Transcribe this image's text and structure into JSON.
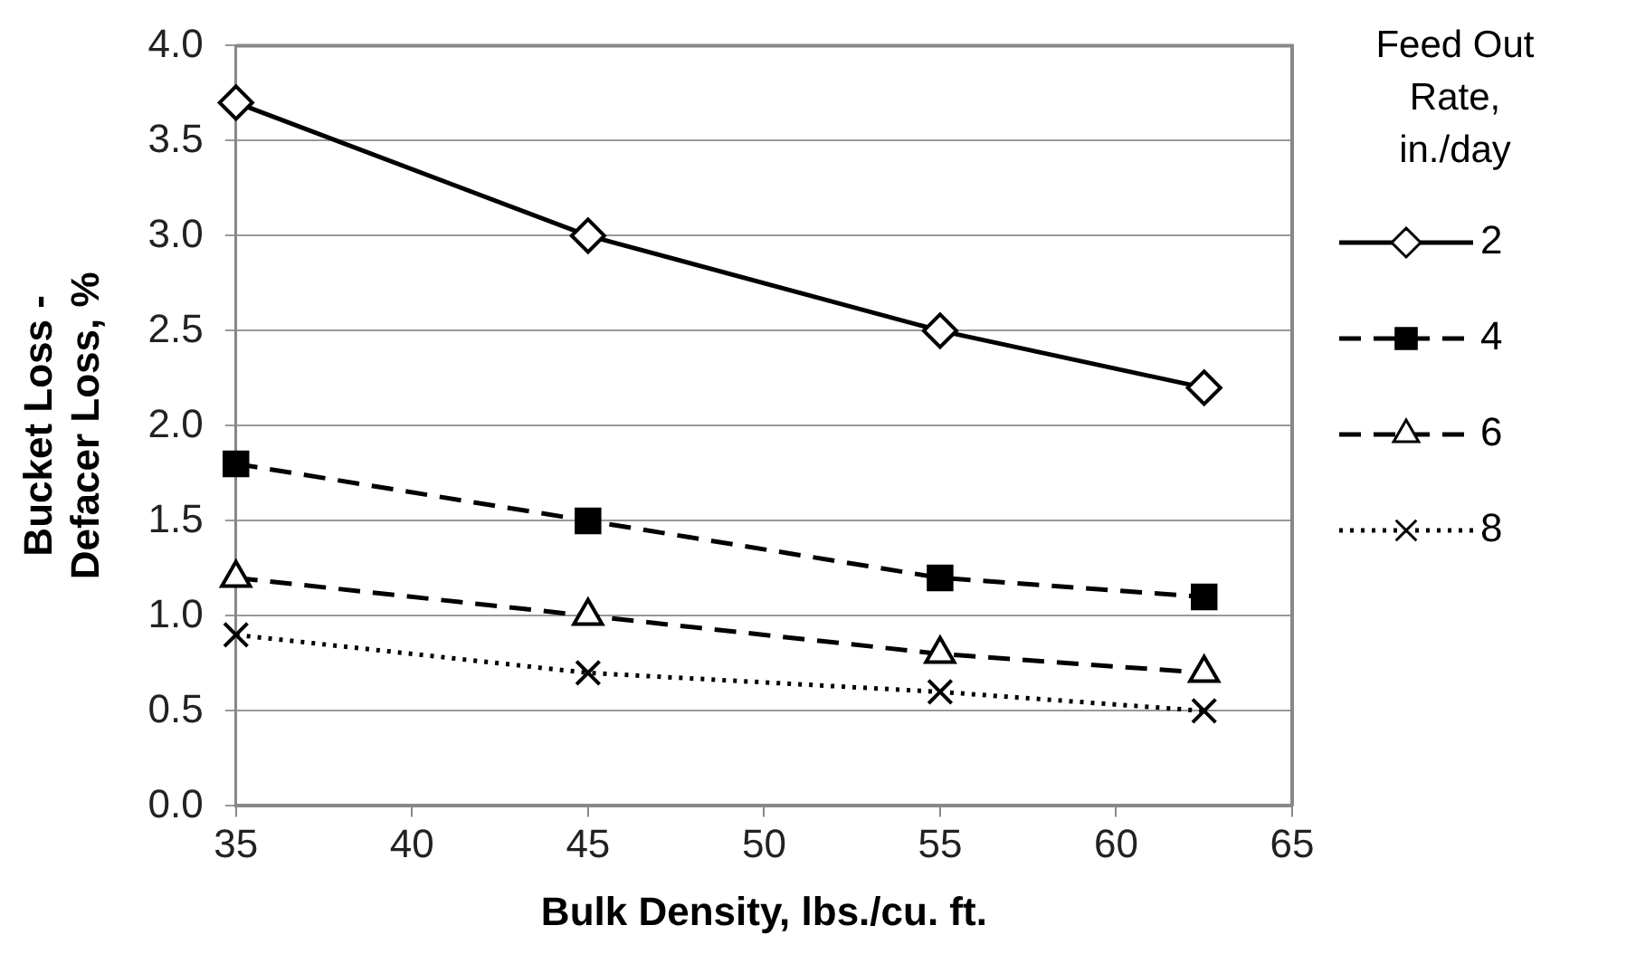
{
  "chart_data": {
    "type": "line",
    "xlabel": "Bulk Density, lbs./cu. ft.",
    "ylabel": "Bucket Loss - Defacer Loss, %",
    "legend_title": "Feed Out Rate, in./day",
    "legend": "right",
    "grid": "y",
    "x": [
      35,
      45,
      55,
      62.5
    ],
    "xlim": [
      35,
      65
    ],
    "xticks": [
      35,
      40,
      45,
      50,
      55,
      60,
      65
    ],
    "ylim": [
      0,
      4
    ],
    "yticks": [
      {
        "value": 0,
        "label": "0.0"
      },
      {
        "value": 0.5,
        "label": "0.5"
      },
      {
        "value": 1,
        "label": "1.0"
      },
      {
        "value": 1.5,
        "label": "1.5"
      },
      {
        "value": 2,
        "label": "2.0"
      },
      {
        "value": 2.5,
        "label": "2.5"
      },
      {
        "value": 3,
        "label": "3.0"
      },
      {
        "value": 3.5,
        "label": "3.5"
      },
      {
        "value": 4,
        "label": "4.0"
      }
    ],
    "series": [
      {
        "name": "2",
        "color": "#000000",
        "marker": "diamond",
        "line_style": "solid",
        "values": [
          3.7,
          3.0,
          2.5,
          2.2
        ]
      },
      {
        "name": "4",
        "color": "#000000",
        "marker": "square",
        "line_style": "dashed",
        "values": [
          1.8,
          1.5,
          1.2,
          1.1
        ]
      },
      {
        "name": "6",
        "color": "#000000",
        "marker": "triangle",
        "line_style": "dashed",
        "values": [
          1.2,
          1.0,
          0.8,
          0.7
        ]
      },
      {
        "name": "8",
        "color": "#000000",
        "marker": "cross",
        "line_style": "dotted",
        "values": [
          0.9,
          0.7,
          0.6,
          0.5
        ]
      }
    ]
  }
}
